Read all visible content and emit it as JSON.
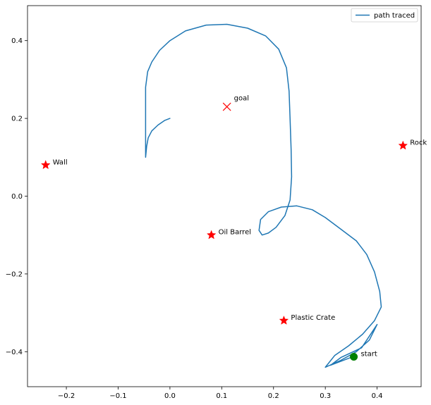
{
  "chart_data": {
    "type": "line",
    "title": "",
    "xlabel": "",
    "ylabel": "",
    "xlim": [
      -0.275,
      0.485
    ],
    "ylim": [
      -0.49,
      0.49
    ],
    "xticks": [
      -0.2,
      -0.1,
      0.0,
      0.1,
      0.2,
      0.3,
      0.4
    ],
    "xtick_labels": [
      "−0.2",
      "−0.1",
      "0.0",
      "0.1",
      "0.2",
      "0.3",
      "0.4"
    ],
    "yticks": [
      0.4,
      0.2,
      0.0,
      -0.2,
      -0.4
    ],
    "ytick_labels": [
      "0.4",
      "0.2",
      "0.0",
      "−0.2",
      "−0.4"
    ],
    "grid": false,
    "legend": {
      "position": "top-right",
      "entries": [
        {
          "label": "path traced",
          "color": "#1f77b4"
        }
      ]
    },
    "series": [
      {
        "name": "path traced",
        "color": "#1f77b4",
        "points": [
          [
            0.0,
            0.2
          ],
          [
            -0.01,
            0.195
          ],
          [
            -0.023,
            0.183
          ],
          [
            -0.035,
            0.168
          ],
          [
            -0.042,
            0.15
          ],
          [
            -0.045,
            0.128
          ],
          [
            -0.047,
            0.1
          ],
          [
            -0.047,
            0.28
          ],
          [
            -0.043,
            0.32
          ],
          [
            -0.035,
            0.345
          ],
          [
            -0.02,
            0.375
          ],
          [
            0.0,
            0.4
          ],
          [
            0.03,
            0.425
          ],
          [
            0.07,
            0.44
          ],
          [
            0.11,
            0.442
          ],
          [
            0.15,
            0.432
          ],
          [
            0.185,
            0.412
          ],
          [
            0.21,
            0.378
          ],
          [
            0.225,
            0.33
          ],
          [
            0.23,
            0.27
          ],
          [
            0.232,
            0.2
          ],
          [
            0.234,
            0.12
          ],
          [
            0.235,
            0.05
          ],
          [
            0.232,
            -0.01
          ],
          [
            0.222,
            -0.05
          ],
          [
            0.205,
            -0.08
          ],
          [
            0.19,
            -0.095
          ],
          [
            0.178,
            -0.1
          ],
          [
            0.172,
            -0.088
          ],
          [
            0.175,
            -0.06
          ],
          [
            0.19,
            -0.04
          ],
          [
            0.215,
            -0.028
          ],
          [
            0.245,
            -0.025
          ],
          [
            0.275,
            -0.035
          ],
          [
            0.3,
            -0.055
          ],
          [
            0.33,
            -0.085
          ],
          [
            0.36,
            -0.115
          ],
          [
            0.38,
            -0.15
          ],
          [
            0.395,
            -0.195
          ],
          [
            0.405,
            -0.245
          ],
          [
            0.408,
            -0.285
          ],
          [
            0.395,
            -0.32
          ],
          [
            0.372,
            -0.355
          ],
          [
            0.345,
            -0.385
          ],
          [
            0.318,
            -0.41
          ],
          [
            0.3,
            -0.44
          ],
          [
            0.33,
            -0.422
          ],
          [
            0.36,
            -0.4
          ],
          [
            0.385,
            -0.37
          ],
          [
            0.4,
            -0.33
          ],
          [
            0.37,
            -0.39
          ],
          [
            0.33,
            -0.415
          ],
          [
            0.31,
            -0.435
          ],
          [
            0.355,
            -0.412
          ]
        ]
      }
    ],
    "annotations": [
      {
        "label": "goal",
        "x": 0.11,
        "y": 0.23,
        "marker": "x",
        "color": "#ff0000"
      },
      {
        "label": "Rock",
        "x": 0.45,
        "y": 0.13,
        "marker": "star",
        "color": "#ff0000"
      },
      {
        "label": "Wall",
        "x": -0.24,
        "y": 0.08,
        "marker": "star",
        "color": "#ff0000"
      },
      {
        "label": "Oil Barrel",
        "x": 0.08,
        "y": -0.1,
        "marker": "star",
        "color": "#ff0000"
      },
      {
        "label": "Plastic Crate",
        "x": 0.22,
        "y": -0.32,
        "marker": "star",
        "color": "#ff0000"
      },
      {
        "label": "start",
        "x": 0.355,
        "y": -0.413,
        "marker": "circle",
        "color": "#008000"
      }
    ]
  }
}
